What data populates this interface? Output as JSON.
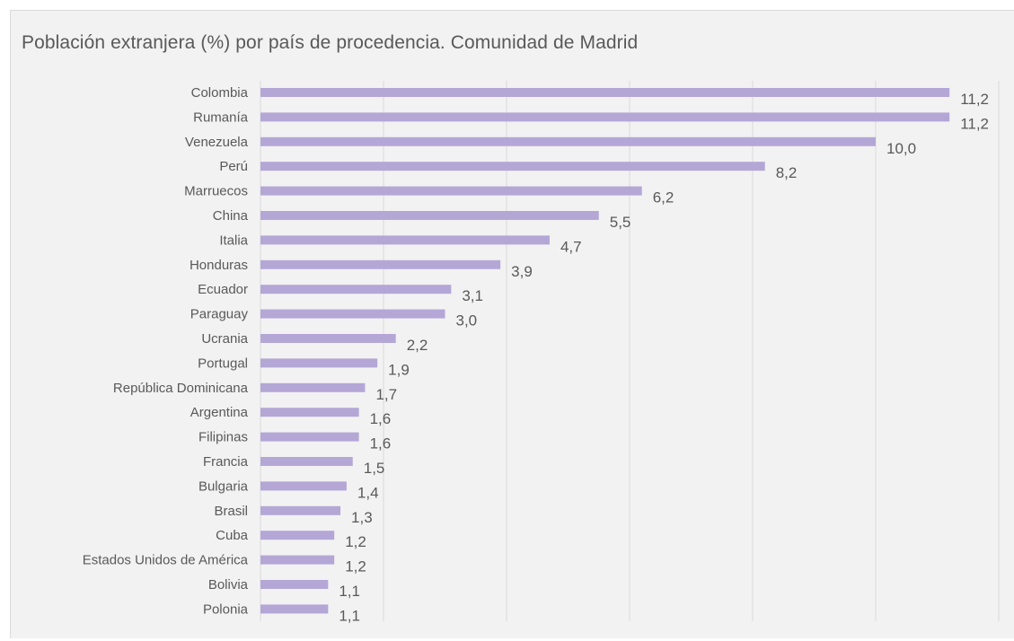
{
  "chart_data": {
    "type": "bar",
    "orientation": "horizontal",
    "title": "Población extranjera (%) por país de procedencia. Comunidad de Madrid",
    "xlabel": "",
    "ylabel": "",
    "xlim": [
      0,
      12
    ],
    "grid": true,
    "legend": "none",
    "categories": [
      "Colombia",
      "Rumanía",
      "Venezuela",
      "Perú",
      "Marruecos",
      "China",
      "Italia",
      "Honduras",
      "Ecuador",
      "Paraguay",
      "Ucrania",
      "Portugal",
      "República Dominicana",
      "Argentina",
      "Filipinas",
      "Francia",
      "Bulgaria",
      "Brasil",
      "Cuba",
      "Estados Unidos de América",
      "Bolivia",
      "Polonia"
    ],
    "values": [
      11.2,
      11.2,
      10.0,
      8.2,
      6.2,
      5.5,
      4.7,
      3.9,
      3.1,
      3.0,
      2.2,
      1.9,
      1.7,
      1.6,
      1.6,
      1.5,
      1.4,
      1.3,
      1.2,
      1.2,
      1.1,
      1.1
    ],
    "data_labels": [
      "11,2",
      "11,2",
      "10,0",
      "8,2",
      "6,2",
      "5,5",
      "4,7",
      "3,9",
      "3,1",
      "3,0",
      "2,2",
      "1,9",
      "1,7",
      "1,6",
      "1,6",
      "1,5",
      "1,4",
      "1,3",
      "1,2",
      "1,2",
      "1,1",
      "1,1"
    ],
    "colors": {
      "bar": "#b4a7d6",
      "grid": "#d9d9d9",
      "text": "#595959",
      "background": "#f2f2f2"
    }
  }
}
